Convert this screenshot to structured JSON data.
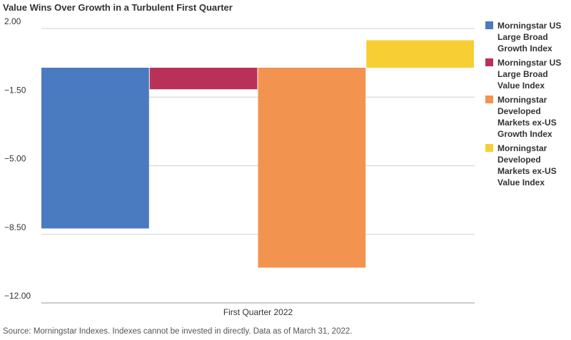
{
  "title": "Value Wins Over Growth in a Turbulent First Quarter",
  "source": "Source: Morningstar Indexes. Indexes cannot be invested in directly.  Data as of March 31, 2022.",
  "chart_data": {
    "type": "bar",
    "title": "Value Wins Over Growth in a Turbulent First Quarter",
    "categories": [
      "First Quarter 2022"
    ],
    "series": [
      {
        "name": "Morningstar US Large Broad Growth Index",
        "values": [
          -8.2
        ],
        "color": "#4a7abf"
      },
      {
        "name": "Morningstar US Large Broad Value Index",
        "values": [
          -1.1
        ],
        "color": "#b93158"
      },
      {
        "name": "Morningstar Developed Markets ex-US Growth Index",
        "values": [
          -10.2
        ],
        "color": "#f39350"
      },
      {
        "name": "Morningstar Developed Markets ex-US Value Index",
        "values": [
          1.4
        ],
        "color": "#f7cf35"
      }
    ],
    "ylim": [
      -12,
      2
    ],
    "yticks": [
      2,
      -1.5,
      -5,
      -8.5,
      -12
    ],
    "ytick_labels": [
      "2.00",
      "−1.50",
      "−5.00",
      "−8.50",
      "−12.00"
    ],
    "xlabel": "",
    "ylabel": "",
    "grid": true,
    "legend": "right"
  }
}
